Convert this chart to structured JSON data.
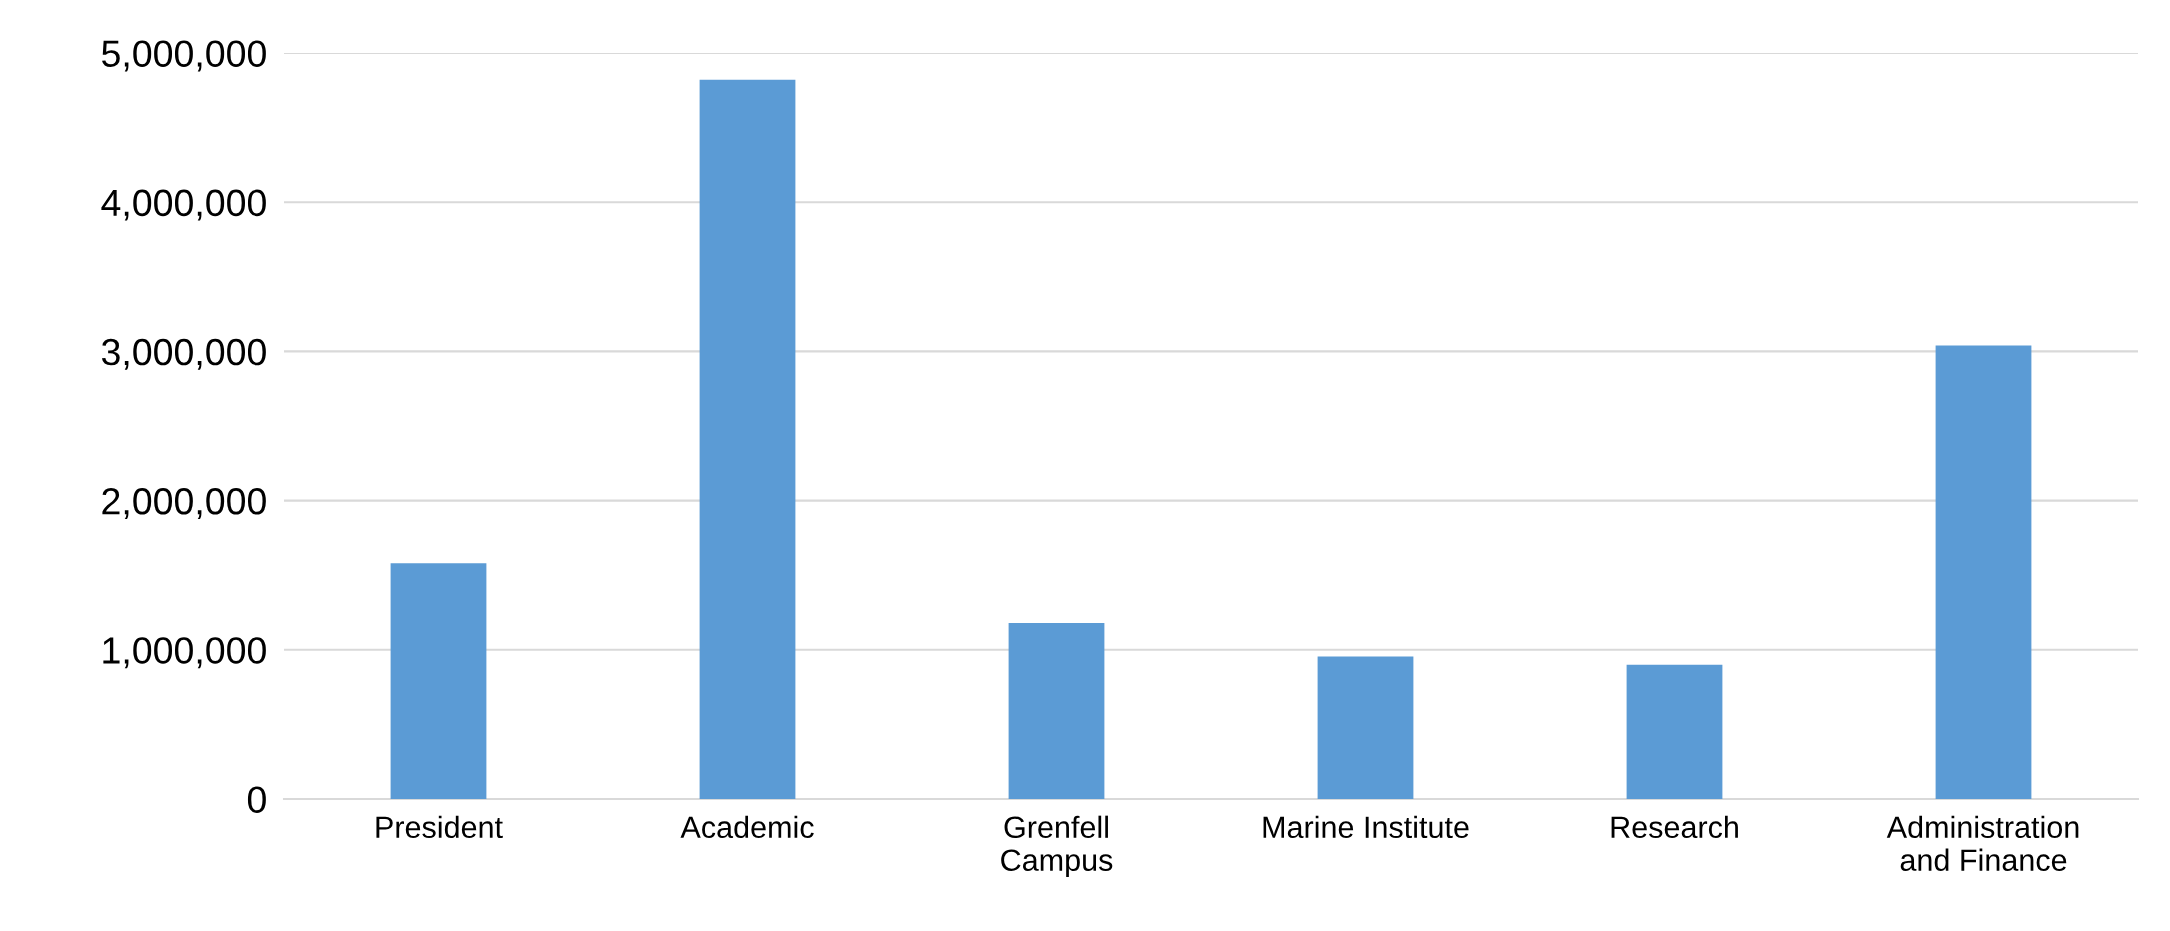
{
  "chart_data": {
    "type": "bar",
    "categories": [
      "President",
      "Academic",
      "Grenfell\nCampus",
      "Marine Institute",
      "Research",
      "Administration\nand Finance"
    ],
    "values": [
      1580000,
      4820000,
      1180000,
      955000,
      900000,
      3040000
    ],
    "color": "#5b9bd5",
    "ylim": [
      0,
      5000000
    ],
    "yticks": [
      {
        "value": 0,
        "label": "0"
      },
      {
        "value": 1000000,
        "label": "1,000,000"
      },
      {
        "value": 2000000,
        "label": "2,000,000"
      },
      {
        "value": 3000000,
        "label": "3,000,000"
      },
      {
        "value": 4000000,
        "label": "4,000,000"
      },
      {
        "value": 5000000,
        "label": "5,000,000"
      }
    ],
    "grid": "y",
    "legend": false
  }
}
